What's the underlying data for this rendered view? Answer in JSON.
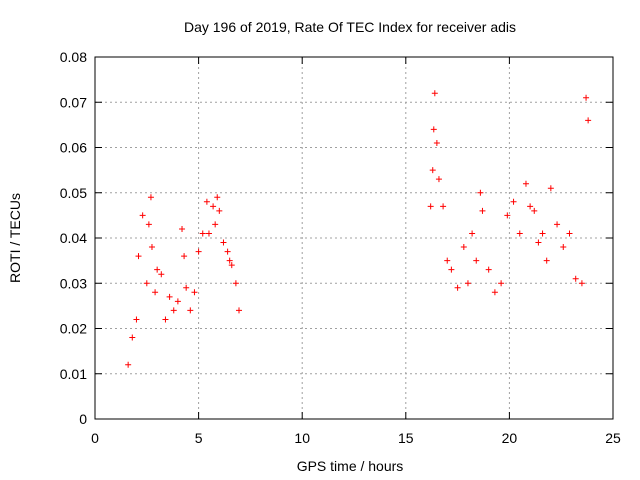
{
  "chart_data": {
    "type": "scatter",
    "title": "Day 196 of 2019, Rate Of TEC Index for receiver adis",
    "xlabel": "GPS time / hours",
    "ylabel": "ROTI / TECUs",
    "xlim": [
      0,
      25
    ],
    "ylim": [
      0,
      0.08
    ],
    "x_ticks": [
      "0",
      "5",
      "10",
      "15",
      "20",
      "25"
    ],
    "y_ticks": [
      "0",
      "0.01",
      "0.02",
      "0.03",
      "0.04",
      "0.05",
      "0.06",
      "0.07",
      "0.08"
    ],
    "grid": true,
    "marker": "+",
    "color": "#ff0000",
    "series": [
      {
        "name": "ROTI",
        "x": [
          1.6,
          1.8,
          2.0,
          2.1,
          2.3,
          2.5,
          2.6,
          2.7,
          2.75,
          2.9,
          3.0,
          3.2,
          3.4,
          3.6,
          3.8,
          4.0,
          4.2,
          4.3,
          4.4,
          4.6,
          4.8,
          5.0,
          5.2,
          5.4,
          5.5,
          5.7,
          5.8,
          5.9,
          6.0,
          6.2,
          6.4,
          6.5,
          6.6,
          6.8,
          6.95,
          16.2,
          16.3,
          16.35,
          16.4,
          16.5,
          16.6,
          16.8,
          17.0,
          17.2,
          17.5,
          17.8,
          18.0,
          18.2,
          18.4,
          18.6,
          18.7,
          19.0,
          19.3,
          19.6,
          19.9,
          20.2,
          20.5,
          20.8,
          21.0,
          21.2,
          21.4,
          21.6,
          21.8,
          22.0,
          22.3,
          22.6,
          22.9,
          23.2,
          23.5,
          23.7,
          23.8
        ],
        "y": [
          0.012,
          0.018,
          0.022,
          0.036,
          0.045,
          0.03,
          0.043,
          0.049,
          0.038,
          0.028,
          0.033,
          0.032,
          0.022,
          0.027,
          0.024,
          0.026,
          0.042,
          0.036,
          0.029,
          0.024,
          0.028,
          0.037,
          0.041,
          0.048,
          0.041,
          0.047,
          0.043,
          0.049,
          0.046,
          0.039,
          0.037,
          0.035,
          0.034,
          0.03,
          0.024,
          0.047,
          0.055,
          0.064,
          0.072,
          0.061,
          0.053,
          0.047,
          0.035,
          0.033,
          0.029,
          0.038,
          0.03,
          0.041,
          0.035,
          0.05,
          0.046,
          0.033,
          0.028,
          0.03,
          0.045,
          0.048,
          0.041,
          0.052,
          0.047,
          0.046,
          0.039,
          0.041,
          0.035,
          0.051,
          0.043,
          0.038,
          0.041,
          0.031,
          0.03,
          0.071,
          0.066
        ]
      }
    ]
  }
}
